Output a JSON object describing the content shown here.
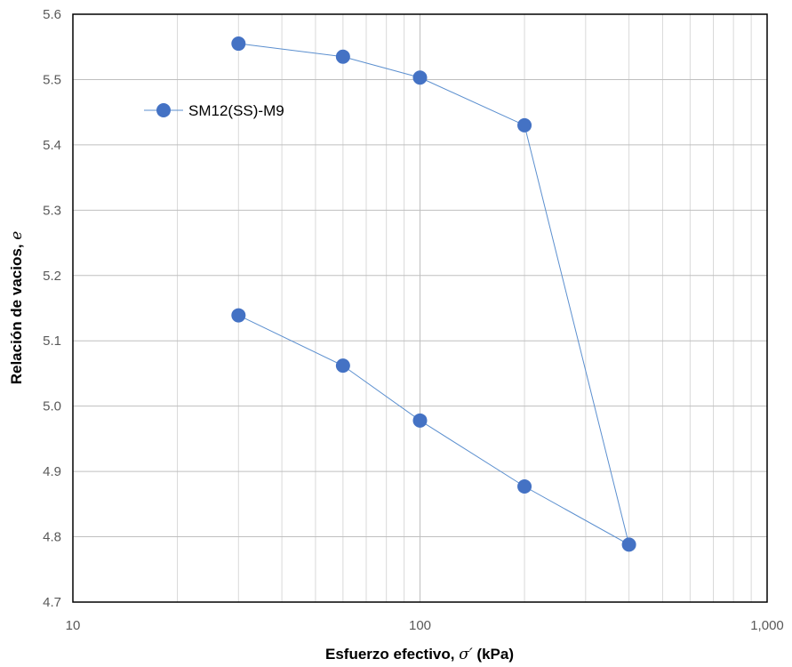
{
  "chart_data": {
    "type": "line",
    "x_scale": "log",
    "xlim": [
      10,
      1000
    ],
    "ylim": [
      4.7,
      5.6
    ],
    "grid": true,
    "legend_position": "top-left",
    "xlabel": "Esfuerzo efectivo, σ′ (kPa)",
    "ylabel": "Relación de vacios, e",
    "x_tick_labels": [
      {
        "value": 10,
        "label": "10"
      },
      {
        "value": 100,
        "label": "100"
      },
      {
        "value": 1000,
        "label": "1,000"
      }
    ],
    "y_tick_labels": [
      {
        "value": 4.7,
        "label": "4.7"
      },
      {
        "value": 4.8,
        "label": "4.8"
      },
      {
        "value": 4.9,
        "label": "4.9"
      },
      {
        "value": 5.0,
        "label": "5.0"
      },
      {
        "value": 5.1,
        "label": "5.1"
      },
      {
        "value": 5.2,
        "label": "5.2"
      },
      {
        "value": 5.3,
        "label": "5.3"
      },
      {
        "value": 5.4,
        "label": "5.4"
      },
      {
        "value": 5.5,
        "label": "5.5"
      },
      {
        "value": 5.6,
        "label": "5.6"
      }
    ],
    "series": [
      {
        "name": "SM12(SS)-M9",
        "color": "#4472C4",
        "line_color": "#5B8FCF",
        "marker": "circle",
        "x": [
          30,
          60,
          100,
          200,
          400,
          200,
          100,
          60,
          30
        ],
        "y": [
          5.555,
          5.535,
          5.503,
          5.43,
          4.788,
          4.877,
          4.978,
          5.062,
          5.139
        ]
      }
    ]
  }
}
